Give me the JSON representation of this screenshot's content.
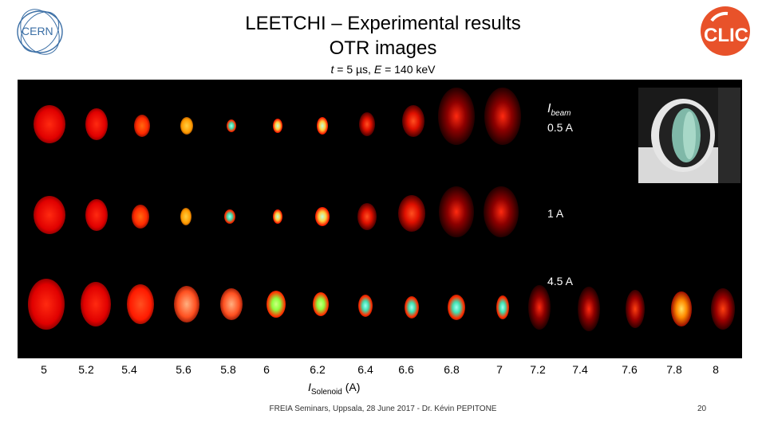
{
  "header": {
    "title_line1": "LEETCHI – Experimental results",
    "title_line2": "OTR images",
    "subtitle_t": "t",
    "subtitle_t_val": " = 5 µs, ",
    "subtitle_e": "E",
    "subtitle_e_val": " = 140 keV"
  },
  "logos": {
    "left": "CERN",
    "right": "CLIC"
  },
  "rows": [
    {
      "label_main": "I",
      "label_sub": "beam",
      "label_value": "0.5 A"
    },
    {
      "label_value": "1 A"
    },
    {
      "label_value": "4.5 A"
    }
  ],
  "x_ticks": [
    "5",
    "5.2",
    "5.4",
    "5.6",
    "5.8",
    "6",
    "6.2",
    "6.4",
    "6.6",
    "6.8",
    "7",
    "7.2",
    "7.4",
    "7.6",
    "7.8",
    "8"
  ],
  "x_label": {
    "main": "I",
    "sub": "Solenoid",
    "unit": " (A)"
  },
  "footer": {
    "text": "FREIA Seminars, Uppsala, 28 June 2017   -   Dr. Kévin PEPITONE",
    "page": "20"
  },
  "colors": {
    "panel": "#000000",
    "glow": "#ff1a00",
    "core": "#7fffd0"
  }
}
